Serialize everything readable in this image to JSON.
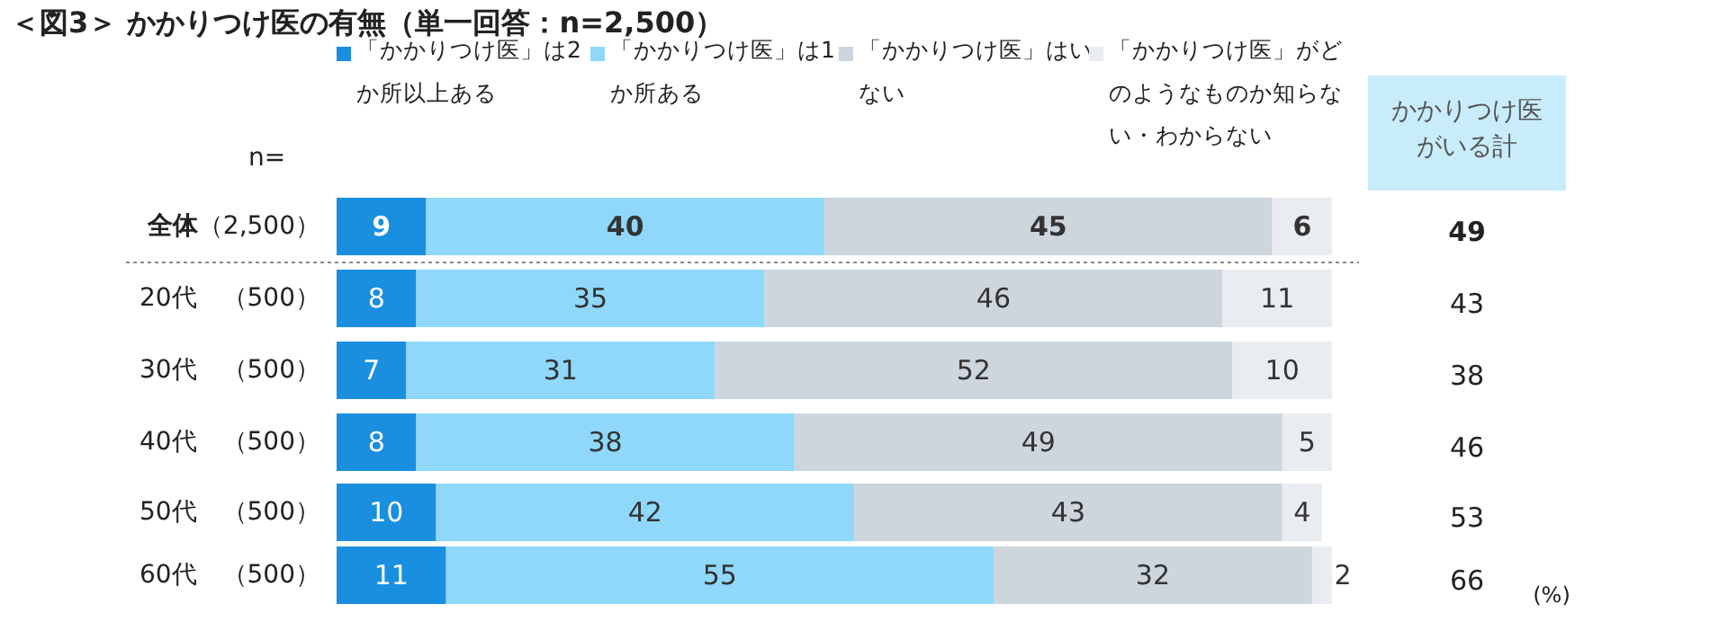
{
  "chart_data": {
    "type": "bar",
    "orientation": "horizontal",
    "stacked": true,
    "title": "＜図3＞ かかりつけ医の有無（単一回答：n=2,500）",
    "categories": [
      "**全体**（2,500）",
      "20代　（500）",
      "30代　（500）",
      "40代　（500）",
      "50代　（500）",
      "60代　（500）"
    ],
    "series": [
      {
        "name": "「かかりつけ医」は2か所以上ある",
        "color": "#1a8fe0",
        "values": [
          9,
          8,
          7,
          8,
          10,
          11
        ]
      },
      {
        "name": "「かかりつけ医」は1か所ある",
        "color": "#8fd8fb",
        "values": [
          40,
          35,
          31,
          38,
          42,
          55
        ]
      },
      {
        "name": "「かかりつけ医」はいない",
        "color": "#cdd5dd",
        "values": [
          45,
          46,
          52,
          49,
          43,
          32
        ]
      },
      {
        "name": "「かかりつけ医」がどのようなものか知らない・わからない",
        "color": "#e9ecf0",
        "values": [
          6,
          11,
          10,
          5,
          4,
          2
        ]
      }
    ],
    "xlim": [
      0,
      100
    ],
    "data_labels": true,
    "legend": "top",
    "annotations": [
      "n=",
      "かかりつけ医がいる計",
      "49",
      "43",
      "38",
      "46",
      "53",
      "66",
      "(%)"
    ]
  }
}
